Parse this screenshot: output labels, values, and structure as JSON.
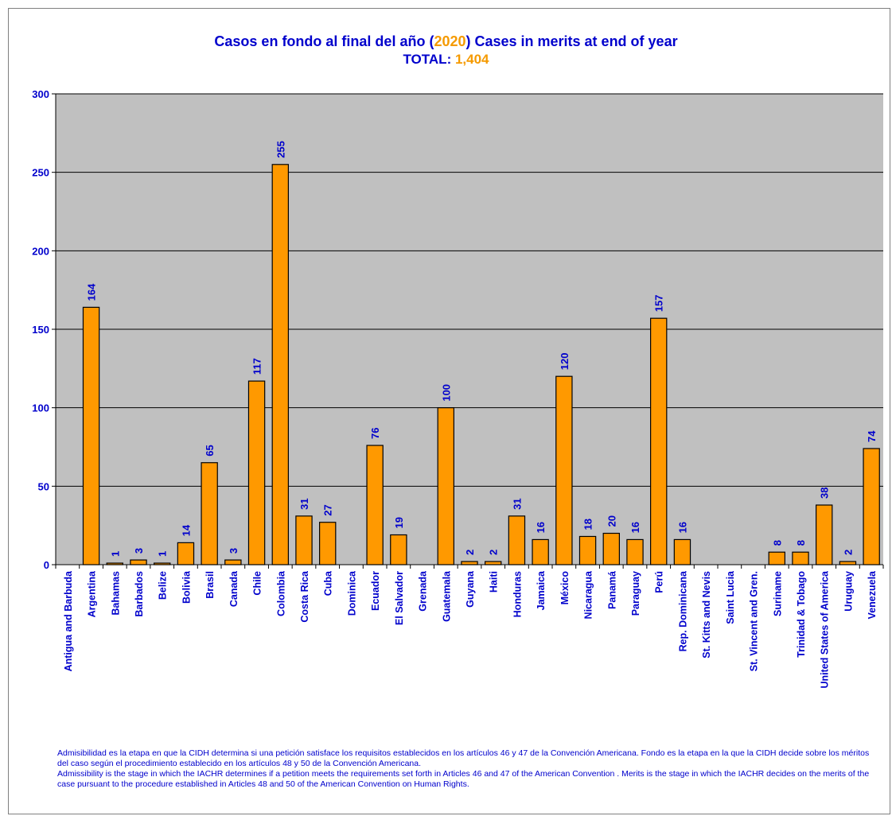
{
  "chart_data": {
    "type": "bar",
    "title_prefix": "Casos en fondo al final del año (",
    "title_year": "2020",
    "title_suffix": ") Cases in merits at end of year",
    "subtitle_label": "TOTAL:",
    "subtitle_value": "1,404",
    "ylim": [
      0,
      300
    ],
    "yticks": [
      0,
      50,
      100,
      150,
      200,
      250,
      300
    ],
    "grid": true,
    "categories": [
      "Antigua and Barbuda",
      "Argentina",
      "Bahamas",
      "Barbados",
      "Belize",
      "Bolivia",
      "Brasil",
      "Canada",
      "Chile",
      "Colombia",
      "Costa Rica",
      "Cuba",
      "Dominica",
      "Ecuador",
      "El Salvador",
      "Grenada",
      "Guatemala",
      "Guyana",
      "Haiti",
      "Honduras",
      "Jamaica",
      "México",
      "Nicaragua",
      "Panamá",
      "Paraguay",
      "Perú",
      "Rep. Dominicana",
      "St. Kitts and Nevis",
      "Saint Lucia",
      "St. Vincent and Gren.",
      "Suriname",
      "Trinidad & Tobago",
      "United States of America",
      "Uruguay",
      "Venezuela"
    ],
    "values": [
      null,
      164,
      1,
      3,
      1,
      14,
      65,
      3,
      117,
      255,
      31,
      27,
      null,
      76,
      19,
      null,
      100,
      2,
      2,
      31,
      16,
      120,
      18,
      20,
      16,
      157,
      16,
      null,
      null,
      null,
      8,
      8,
      38,
      2,
      74
    ],
    "colors": {
      "bar": "#ff9900",
      "bar_border": "#000000",
      "plot_bg": "#c0c0c0",
      "text": "#0000cc",
      "accent": "#f59a00"
    }
  },
  "footnote": [
    "Admisibilidad es la etapa en que la CIDH determina si una petición satisface los requisitos establecidos en los artículos 46 y 47 de la Convención Americana.  Fondo es la etapa en la que la CIDH decide sobre los méritos del caso según el procedimiento establecido en los artículos 48 y 50 de la Convención Americana.",
    "Admissibility is the stage in which the IACHR determines  if a petition meets the requirements set forth in Articles 46 and 47 of the American Convention . Merits is the stage in which the IACHR decides on the  merits of the case pursuant to the procedure established in Articles 48 and 50 of the American Convention on Human Rights."
  ]
}
